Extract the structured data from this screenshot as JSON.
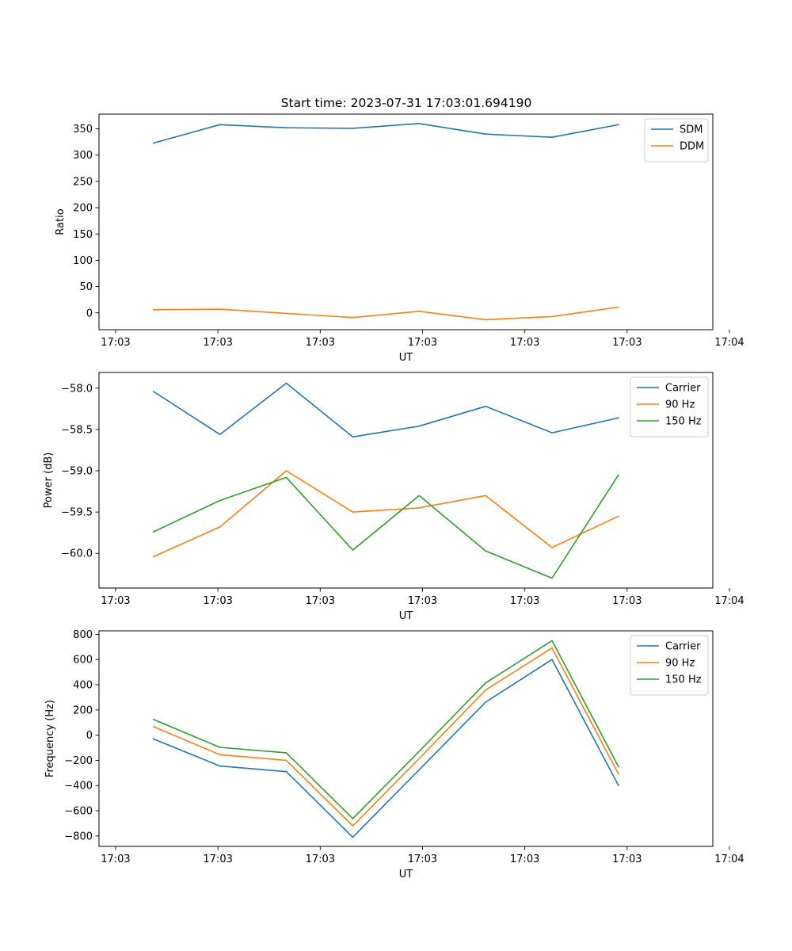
{
  "figure_title": "Start time: 2023-07-31 17:03:01.694190",
  "chart_data": [
    {
      "type": "line",
      "title": "Start time: 2023-07-31 17:03:01.694190",
      "xlabel": "UT",
      "ylabel": "Ratio",
      "x": [
        1,
        2,
        3,
        4,
        5,
        6,
        7,
        8
      ],
      "xlim": [
        0.18,
        9.42
      ],
      "x_ticks": [
        0.43,
        1.97,
        3.51,
        5.05,
        6.59,
        8.13,
        9.67
      ],
      "x_tick_labels": [
        "17:03",
        "17:03",
        "17:03",
        "17:03",
        "17:03",
        "17:03",
        "17:04"
      ],
      "ylim": [
        -32,
        378
      ],
      "y_ticks": [
        0,
        50,
        100,
        150,
        200,
        250,
        300,
        350
      ],
      "y_tick_labels": [
        "0",
        "50",
        "100",
        "150",
        "200",
        "250",
        "300",
        "350"
      ],
      "legend_position": "upper right",
      "series": [
        {
          "name": "SDM",
          "color": "#1f77b4",
          "values": [
            323,
            358,
            352,
            351,
            360,
            340,
            334,
            358
          ]
        },
        {
          "name": "DDM",
          "color": "#ff7f0e",
          "values": [
            6,
            7,
            -1,
            -9,
            3,
            -13,
            -7,
            11
          ]
        }
      ]
    },
    {
      "type": "line",
      "title": "",
      "xlabel": "UT",
      "ylabel": "Power (dB)",
      "x": [
        1,
        2,
        3,
        4,
        5,
        6,
        7,
        8
      ],
      "xlim": [
        0.18,
        9.42
      ],
      "x_ticks": [
        0.43,
        1.97,
        3.51,
        5.05,
        6.59,
        8.13,
        9.67
      ],
      "x_tick_labels": [
        "17:03",
        "17:03",
        "17:03",
        "17:03",
        "17:03",
        "17:03",
        "17:04"
      ],
      "ylim": [
        -60.42,
        -57.81
      ],
      "y_ticks": [
        -60.0,
        -59.5,
        -59.0,
        -58.5,
        -58.0
      ],
      "y_tick_labels": [
        "−60.0",
        "−59.5",
        "−59.0",
        "−58.5",
        "−58.0"
      ],
      "legend_position": "upper right",
      "series": [
        {
          "name": "Carrier",
          "color": "#1f77b4",
          "values": [
            -58.04,
            -58.56,
            -57.94,
            -58.59,
            -58.46,
            -58.22,
            -58.54,
            -58.36
          ]
        },
        {
          "name": "90 Hz",
          "color": "#ff7f0e",
          "values": [
            -60.04,
            -59.68,
            -59.0,
            -59.5,
            -59.45,
            -59.3,
            -59.93,
            -59.55
          ]
        },
        {
          "name": "150 Hz",
          "color": "#2ca02c",
          "values": [
            -59.74,
            -59.36,
            -59.08,
            -59.96,
            -59.3,
            -59.97,
            -60.3,
            -59.05
          ]
        }
      ]
    },
    {
      "type": "line",
      "title": "",
      "xlabel": "UT",
      "ylabel": "Frequency (Hz)",
      "x": [
        1,
        2,
        3,
        4,
        5,
        6,
        7,
        8
      ],
      "xlim": [
        0.18,
        9.42
      ],
      "x_ticks": [
        0.43,
        1.97,
        3.51,
        5.05,
        6.59,
        8.13,
        9.67
      ],
      "x_tick_labels": [
        "17:03",
        "17:03",
        "17:03",
        "17:03",
        "17:03",
        "17:03",
        "17:04"
      ],
      "ylim": [
        -883,
        828
      ],
      "y_ticks": [
        -800,
        -600,
        -400,
        -200,
        0,
        200,
        400,
        600,
        800
      ],
      "y_tick_labels": [
        "−800",
        "−600",
        "−400",
        "−200",
        "0",
        "200",
        "400",
        "600",
        "800"
      ],
      "legend_position": "upper right",
      "series": [
        {
          "name": "Carrier",
          "color": "#1f77b4",
          "values": [
            -30,
            -245,
            -290,
            -810,
            -275,
            262,
            600,
            -400
          ]
        },
        {
          "name": "90 Hz",
          "color": "#ff7f0e",
          "values": [
            68,
            -155,
            -200,
            -720,
            -185,
            358,
            692,
            -308
          ]
        },
        {
          "name": "150 Hz",
          "color": "#2ca02c",
          "values": [
            125,
            -97,
            -140,
            -662,
            -128,
            415,
            750,
            -250
          ]
        }
      ]
    }
  ]
}
